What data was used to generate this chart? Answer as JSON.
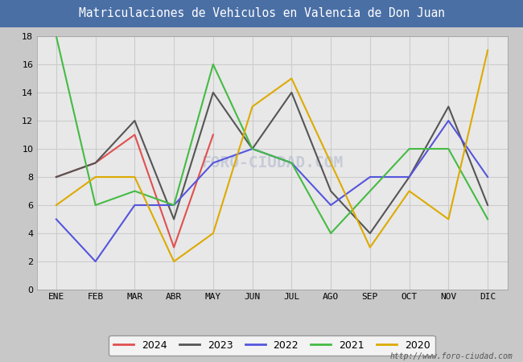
{
  "title": "Matriculaciones de Vehiculos en Valencia de Don Juan",
  "title_bg_color": "#4a6fa5",
  "title_text_color": "#ffffff",
  "months": [
    "ENE",
    "FEB",
    "MAR",
    "ABR",
    "MAY",
    "JUN",
    "JUL",
    "AGO",
    "SEP",
    "OCT",
    "NOV",
    "DIC"
  ],
  "series": {
    "2024": {
      "color": "#e05050",
      "data": [
        8,
        9,
        11,
        3,
        11,
        null,
        null,
        null,
        null,
        null,
        null,
        null
      ]
    },
    "2023": {
      "color": "#555555",
      "data": [
        8,
        9,
        12,
        5,
        14,
        10,
        14,
        7,
        4,
        8,
        13,
        6
      ]
    },
    "2022": {
      "color": "#5555dd",
      "data": [
        5,
        2,
        6,
        6,
        9,
        10,
        9,
        6,
        8,
        8,
        12,
        8
      ]
    },
    "2021": {
      "color": "#44bb44",
      "data": [
        18,
        6,
        7,
        6,
        16,
        10,
        9,
        4,
        null,
        10,
        10,
        5
      ]
    },
    "2020": {
      "color": "#ddaa00",
      "data": [
        6,
        8,
        8,
        2,
        4,
        13,
        15,
        null,
        3,
        7,
        5,
        17
      ]
    }
  },
  "ylim": [
    0,
    18
  ],
  "yticks": [
    0,
    2,
    4,
    6,
    8,
    10,
    12,
    14,
    16,
    18
  ],
  "grid_color": "#cccccc",
  "plot_bg_color": "#e8e8e8",
  "fig_bg_color": "#c8c8c8",
  "watermark_text": "FORO-CIUDAD.COM",
  "watermark_url": "http://www.foro-ciudad.com",
  "legend_order": [
    "2024",
    "2023",
    "2022",
    "2021",
    "2020"
  ]
}
